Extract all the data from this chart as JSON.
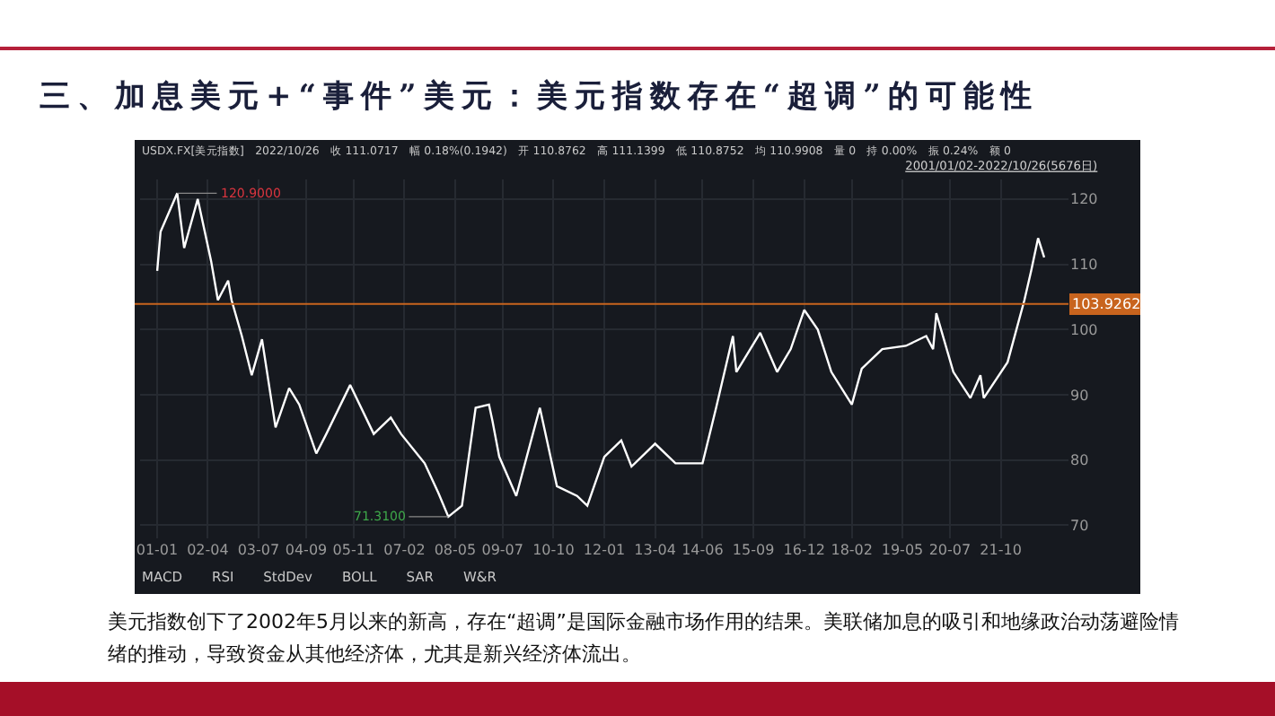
{
  "chart_data": {
    "type": "line",
    "title": "三、加息美元+“事件”美元：美元指数存在“超调”的可能性",
    "x": [
      "2001-01-02",
      "2001-02",
      "2001-07",
      "2001-09",
      "2002-01",
      "2002-05",
      "2002-07",
      "2002-10",
      "2002-11",
      "2003-02",
      "2003-05",
      "2003-08",
      "2003-12",
      "2004-04",
      "2004-07",
      "2004-12",
      "2005-03",
      "2005-10",
      "2006-05",
      "2006-10",
      "2007-01",
      "2007-08",
      "2007-12",
      "2008-03",
      "2008-07",
      "2008-11",
      "2009-03",
      "2009-04",
      "2009-06",
      "2009-11",
      "2010-06",
      "2010-11",
      "2011-05",
      "2011-08",
      "2012-01",
      "2012-06",
      "2012-09",
      "2013-04",
      "2013-10",
      "2014-06",
      "2014-10",
      "2015-03",
      "2015-04",
      "2015-11",
      "2016-04",
      "2016-08",
      "2016-12",
      "2017-04",
      "2017-08",
      "2018-02",
      "2018-05",
      "2018-11",
      "2019-06",
      "2019-12",
      "2020-02",
      "2020-03",
      "2020-08",
      "2021-01",
      "2021-04",
      "2021-05",
      "2021-12",
      "2022-05",
      "2022-07",
      "2022-09",
      "2022-10-26"
    ],
    "series": [
      {
        "color": "#ffffff",
        "values": [
          109,
          115,
          120.9,
          112.5,
          120,
          110.5,
          104.5,
          107.5,
          104.5,
          99,
          93,
          98.5,
          85,
          91,
          88.5,
          81,
          84,
          91.5,
          84,
          86.5,
          84,
          79.5,
          75,
          71.31,
          73,
          88,
          88.5,
          86,
          80.5,
          74.5,
          88,
          76,
          74.5,
          73,
          80.5,
          83,
          79,
          82.5,
          79.5,
          79.5,
          88,
          99,
          93.5,
          99.5,
          93.5,
          97,
          103,
          100,
          93.5,
          88.5,
          94,
          97,
          97.5,
          99,
          97,
          102.5,
          93.5,
          89.5,
          93,
          89.5,
          95,
          104.5,
          109,
          114,
          111.07
        ]
      }
    ],
    "xlim": [
      "2000-08-01",
      "2023-06-01"
    ],
    "xticks": [
      {
        "value": "2001-01",
        "label": "01-01"
      },
      {
        "value": "2002-04",
        "label": "02-04"
      },
      {
        "value": "2003-07",
        "label": "03-07"
      },
      {
        "value": "2004-09",
        "label": "04-09"
      },
      {
        "value": "2005-11",
        "label": "05-11"
      },
      {
        "value": "2007-02",
        "label": "07-02"
      },
      {
        "value": "2008-05",
        "label": "08-05"
      },
      {
        "value": "2009-07",
        "label": "09-07"
      },
      {
        "value": "2010-10",
        "label": "10-10"
      },
      {
        "value": "2012-01",
        "label": "12-01"
      },
      {
        "value": "2013-04",
        "label": "13-04"
      },
      {
        "value": "2014-06",
        "label": "14-06"
      },
      {
        "value": "2015-09",
        "label": "15-09"
      },
      {
        "value": "2016-12",
        "label": "16-12"
      },
      {
        "value": "2018-02",
        "label": "18-02"
      },
      {
        "value": "2019-05",
        "label": "19-05"
      },
      {
        "value": "2020-07",
        "label": "20-07"
      },
      {
        "value": "2021-10",
        "label": "21-10"
      }
    ],
    "ylim": [
      68,
      123
    ],
    "yticks": [
      70,
      80,
      90,
      100,
      110,
      120
    ],
    "grid": true,
    "marker": "none",
    "line_style": "solid",
    "ref_lines": [
      {
        "axis": "y",
        "value": 103.9262,
        "label": "103.9262",
        "color": "#c8641e"
      }
    ],
    "annotations": [
      "USDX.FX[美元指数]　2022/10/26　收 111.0717　幅 0.18%(0.1942)　开 110.8762　高 111.1399　低 110.8752　均 110.9908　量 0　持 0.00%　振 0.24%　额 0",
      "2001/01/02-2022/10/26(5676日)",
      "MACD",
      "RSI",
      "StdDev",
      "BOLL",
      "SAR",
      "W&R",
      "美元指数创下了2002年5月以来的新高，存在“超调”是国际金融市场作用的结果。美联储加息的吸引和地缘政治动荡避险情绪的推动，导致资金从其他经济体，尤其是新兴经济体流出。",
      {
        "text": "120.9000",
        "x": "2001-07",
        "y": 120.9
      },
      {
        "text": "71.3100",
        "x": "2008-03",
        "y": 71.31
      }
    ]
  }
}
